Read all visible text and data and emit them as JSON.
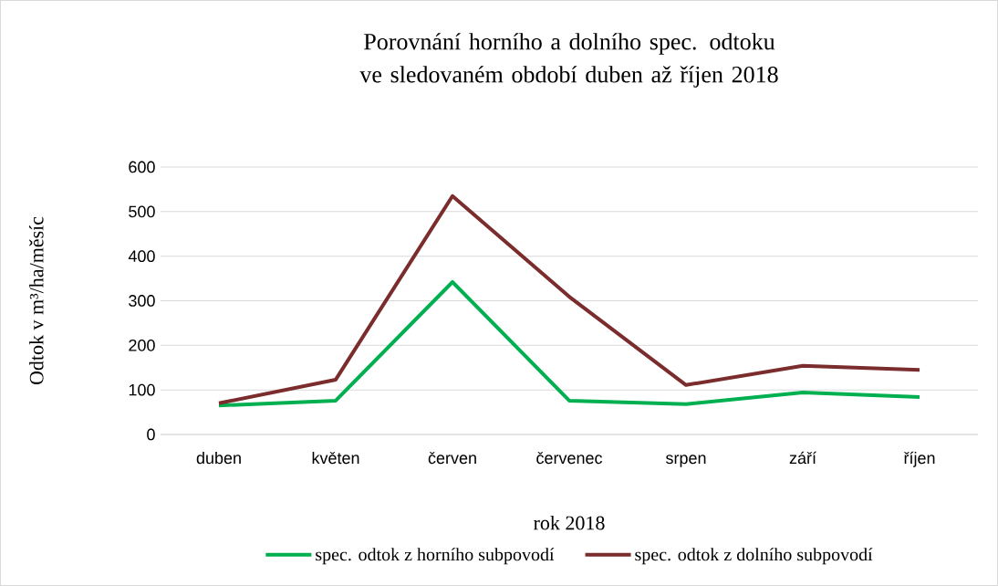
{
  "chart_data": {
    "type": "line",
    "title": "Porovnání horního a dolního spec. odtoku ve sledovaném období duben až říjen 2018",
    "xlabel": "rok 2018",
    "ylabel": "Odtok v m³/ha/měsíc",
    "categories": [
      "duben",
      "květen",
      "červen",
      "červenec",
      "srpen",
      "září",
      "říjen"
    ],
    "series": [
      {
        "name": "spec. odtok z horního subpovodí",
        "color": "#00b050",
        "values": [
          65,
          76,
          342,
          76,
          68,
          94,
          84
        ]
      },
      {
        "name": "spec. odtok z dolního subpovodí",
        "color": "#7b2c2c",
        "values": [
          70,
          123,
          535,
          309,
          111,
          154,
          145
        ]
      }
    ],
    "ylim": [
      0,
      600
    ],
    "yticks": [
      0,
      100,
      200,
      300,
      400,
      500,
      600
    ],
    "grid": "y",
    "legend": "bottom",
    "marker": "none",
    "line_style": "solid"
  }
}
